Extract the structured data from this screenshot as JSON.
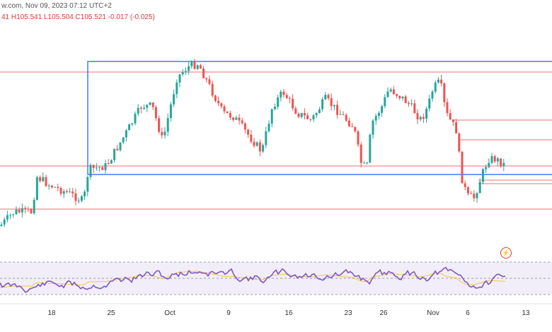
{
  "header": {
    "source_fragment": "w.com, Nov 09, 2023 07:12 UTC+2",
    "ohlc_fragment": "41  H105.541  L105.504  C105.521  -0.017 (-0.025)"
  },
  "colors": {
    "up": "#26a69a",
    "down": "#ef5350",
    "box": "#2962ff",
    "level": "#e57373",
    "rsi": "#7e57c2",
    "rsi_ma": "#f4c542"
  },
  "icons": {
    "lightning": "lightning-icon"
  },
  "chart_data": {
    "type": "candlestick",
    "x_tick_labels": [
      "18",
      "25",
      "Oct",
      "9",
      "16",
      "23",
      "26",
      "Nov",
      "6",
      "13"
    ],
    "indicator": "rsi",
    "grid": false,
    "legend": "none"
  }
}
